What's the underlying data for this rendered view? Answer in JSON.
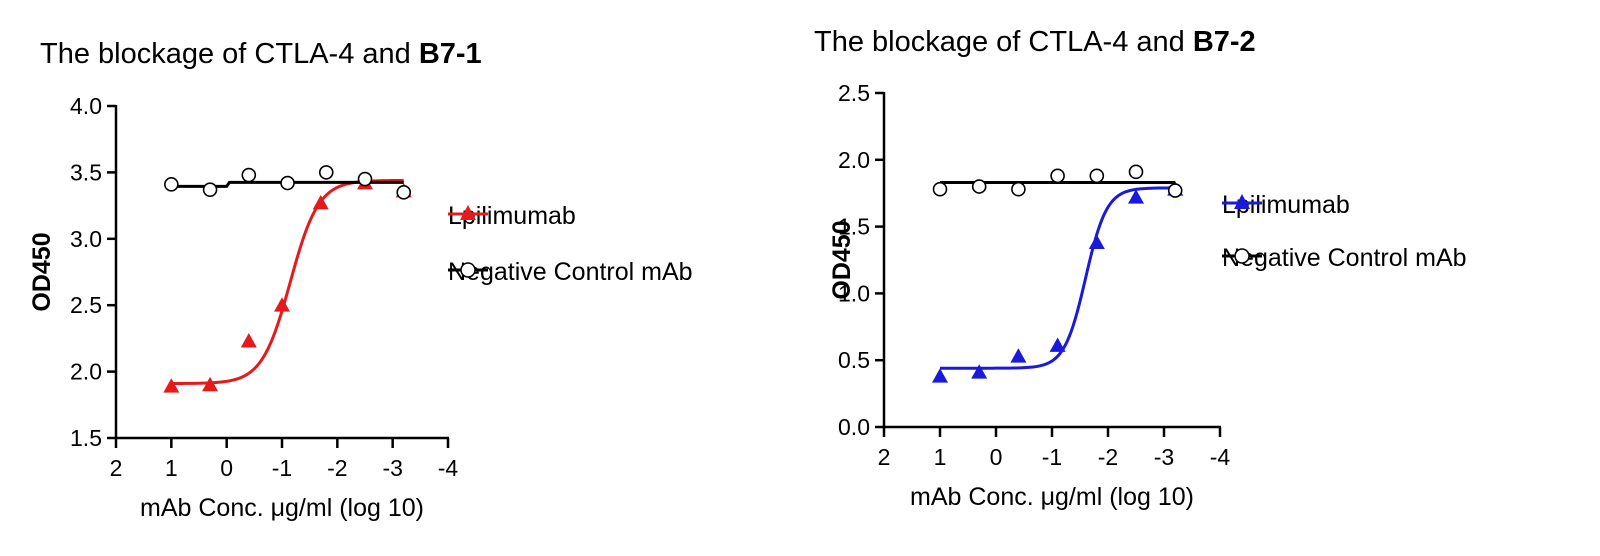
{
  "chart_data": [
    {
      "type": "scatter",
      "title": "The blockage of CTLA-4 and ",
      "title_bold": "B7-1",
      "xlabel": "mAb Conc. μg/ml (log 10)",
      "ylabel": "OD450",
      "xlim": [
        2,
        -4
      ],
      "ylim": [
        1.5,
        4.0
      ],
      "xticks": [
        2,
        1,
        0,
        -1,
        -2,
        -3,
        -4
      ],
      "xtick_labels": [
        "2",
        "1",
        "0",
        "-1",
        "-2",
        "-3",
        "-4"
      ],
      "yticks": [
        1.5,
        2.0,
        2.5,
        3.0,
        3.5,
        4.0
      ],
      "ytick_labels": [
        "1.5",
        "2.0",
        "2.5",
        "3.0",
        "3.5",
        "4.0"
      ],
      "legend": "right",
      "grid": false,
      "series": [
        {
          "name": "Lpilimumab",
          "color": "#e41a1c",
          "marker": "triangle",
          "x": [
            1.0,
            0.3,
            -0.4,
            -1.0,
            -1.7,
            -2.5,
            -3.2
          ],
          "y": [
            1.89,
            1.9,
            2.23,
            2.5,
            3.27,
            3.42,
            3.36
          ],
          "fit": {
            "bottom": 1.91,
            "top": 3.44,
            "logec50": -1.15,
            "hill": 1.7
          }
        },
        {
          "name": "Negative Control mAb",
          "color": "#000000",
          "marker": "circle-open",
          "x": [
            1.0,
            0.3,
            -0.4,
            -1.1,
            -1.8,
            -2.5,
            -3.2
          ],
          "y": [
            3.41,
            3.37,
            3.48,
            3.42,
            3.5,
            3.45,
            3.35
          ],
          "fit_segments": [
            [
              [
                1.0,
                3.395
              ],
              [
                0.0,
                3.395
              ],
              [
                -0.05,
                3.425
              ],
              [
                -3.2,
                3.425
              ]
            ]
          ]
        }
      ]
    },
    {
      "type": "scatter",
      "title": "The blockage of CTLA-4 and ",
      "title_bold": "B7-2",
      "xlabel": "mAb Conc. μg/ml (log 10)",
      "ylabel": "OD450",
      "xlim": [
        2,
        -4
      ],
      "ylim": [
        0.0,
        2.5
      ],
      "xticks": [
        2,
        1,
        0,
        -1,
        -2,
        -3,
        -4
      ],
      "xtick_labels": [
        "2",
        "1",
        "0",
        "-1",
        "-2",
        "-3",
        "-4"
      ],
      "yticks": [
        0.0,
        0.5,
        1.0,
        1.5,
        2.0,
        2.5
      ],
      "ytick_labels": [
        "0.0",
        "0.5",
        "1.0",
        "1.5",
        "2.0",
        "2.5"
      ],
      "legend": "right",
      "grid": false,
      "series": [
        {
          "name": "Lpilimumab",
          "color": "#1a1adb",
          "marker": "triangle",
          "x": [
            1.0,
            0.3,
            -0.4,
            -1.1,
            -1.8,
            -2.5,
            -3.2
          ],
          "y": [
            0.38,
            0.41,
            0.53,
            0.61,
            1.38,
            1.72,
            1.78
          ],
          "fit": {
            "bottom": 0.44,
            "top": 1.79,
            "logec50": -1.6,
            "hill": 2.3
          }
        },
        {
          "name": "Negative Control mAb",
          "color": "#000000",
          "marker": "circle-open",
          "x": [
            1.0,
            0.3,
            -0.4,
            -1.1,
            -1.8,
            -2.5,
            -3.2
          ],
          "y": [
            1.78,
            1.8,
            1.78,
            1.88,
            1.88,
            1.91,
            1.77
          ],
          "fit_segments": [
            [
              [
                1.0,
                1.83
              ],
              [
                -3.2,
                1.83
              ]
            ]
          ]
        }
      ]
    }
  ]
}
